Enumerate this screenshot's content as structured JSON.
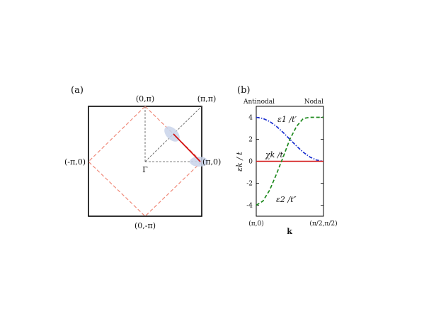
{
  "figure": {
    "panel_a": {
      "label": "(a)",
      "corner_labels": {
        "top_mid": "(0,π)",
        "top_right": "(π,π)",
        "left_mid": "(-π,0)",
        "right_mid": "(π,0)",
        "bottom_mid": "(0,-π)",
        "center": "Γ"
      },
      "colors": {
        "box": "#000000",
        "diamond": "#f08a7a",
        "segment": "#d21414",
        "ellipse": "#c9d4ea",
        "dashed": "#555555"
      }
    },
    "panel_b": {
      "label": "(b)",
      "left_top_label": "Antinodal",
      "right_top_label": "Nodal",
      "ylabel": "εk / t",
      "xlabel": "k",
      "x_tick_left": "(π,0)",
      "x_tick_right": "(π/2,π/2)",
      "annotations": {
        "eps1": "ε1 /t′",
        "chi": "χk /t",
        "eps2": "ε2 /t″"
      }
    }
  },
  "chart_data": {
    "type": "line",
    "title": "",
    "xlabel": "k",
    "ylabel": "εk / t",
    "ylim": [
      -5,
      5
    ],
    "yticks": [
      -4,
      -2,
      0,
      2,
      4
    ],
    "x": [
      0,
      0.1,
      0.2,
      0.3,
      0.4,
      0.5,
      0.6,
      0.7,
      0.8,
      0.9,
      1.0
    ],
    "series": [
      {
        "name": "ε1 /t′",
        "color": "#1a2fd0",
        "style": "dash-dot",
        "values": [
          4.0,
          3.9,
          3.62,
          3.18,
          2.62,
          2.0,
          1.38,
          0.82,
          0.38,
          0.1,
          0.0
        ]
      },
      {
        "name": "χk /t",
        "color": "#d21414",
        "style": "solid",
        "values": [
          0,
          0,
          0,
          0,
          0,
          0,
          0,
          0,
          0,
          0,
          0
        ]
      },
      {
        "name": "ε2 /t″",
        "color": "#1f8a1f",
        "style": "dashed",
        "values": [
          -4.0,
          -3.62,
          -2.62,
          -1.18,
          0.38,
          2.0,
          3.18,
          3.9,
          4.0,
          4.0,
          4.0
        ]
      }
    ]
  }
}
